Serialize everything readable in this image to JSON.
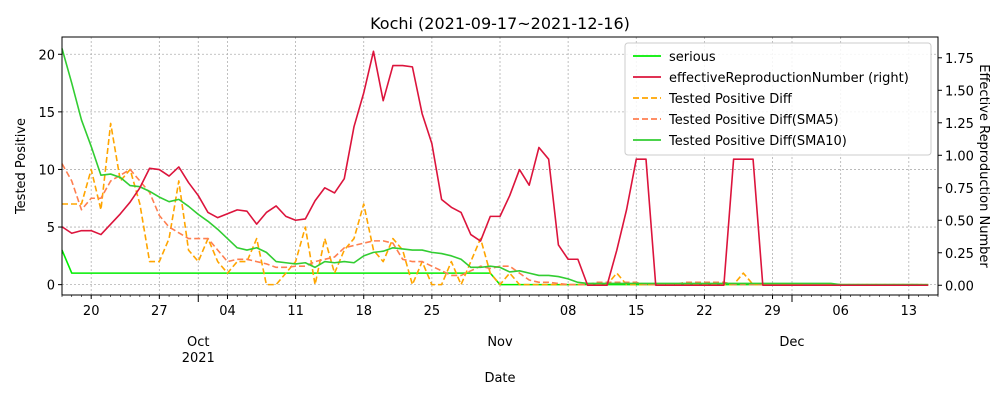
{
  "chart_data": {
    "type": "line",
    "title": "Kochi (2021-09-17~2021-12-16)",
    "xlabel": "Date",
    "ylabel": "Tested Positive",
    "ylabel_right": "Effective Reproduction Number",
    "x_start": "2021-09-17",
    "x_end": "2021-12-16",
    "ylim": [
      -0.9,
      21.5
    ],
    "ylim_right": [
      -0.075,
      1.91
    ],
    "grid": true,
    "legend_position": "top-right",
    "x_ticks": [
      {
        "date": "2021-09-20",
        "label": "20"
      },
      {
        "date": "2021-09-27",
        "label": "27"
      },
      {
        "date": "2021-10-01",
        "label": "Oct",
        "sublabel": "2021"
      },
      {
        "date": "2021-10-04",
        "label": "04"
      },
      {
        "date": "2021-10-11",
        "label": "11"
      },
      {
        "date": "2021-10-18",
        "label": "18"
      },
      {
        "date": "2021-10-25",
        "label": "25"
      },
      {
        "date": "2021-11-01",
        "label": "Nov"
      },
      {
        "date": "2021-11-08",
        "label": "08"
      },
      {
        "date": "2021-11-15",
        "label": "15"
      },
      {
        "date": "2021-11-22",
        "label": "22"
      },
      {
        "date": "2021-11-29",
        "label": "29"
      },
      {
        "date": "2021-12-01",
        "label": "Dec"
      },
      {
        "date": "2021-12-06",
        "label": "06"
      },
      {
        "date": "2021-12-13",
        "label": "13"
      }
    ],
    "y_ticks": [
      0,
      5,
      10,
      15,
      20
    ],
    "y_ticks_right": [
      {
        "value": 0,
        "label": "0.00"
      },
      {
        "value": 0.25,
        "label": "0.25"
      },
      {
        "value": 0.5,
        "label": "0.50"
      },
      {
        "value": 0.75,
        "label": "0.75"
      },
      {
        "value": 1.0,
        "label": "1.00"
      },
      {
        "value": 1.25,
        "label": "1.25"
      },
      {
        "value": 1.5,
        "label": "1.50"
      },
      {
        "value": 1.75,
        "label": "1.75"
      }
    ],
    "series": [
      {
        "name": "serious",
        "axis": "left",
        "color": "#00ee00",
        "dash": "solid",
        "values": [
          3,
          1,
          1,
          1,
          1,
          1,
          1,
          1,
          1,
          1,
          1,
          1,
          1,
          1,
          1,
          1,
          1,
          1,
          1,
          1,
          1,
          1,
          1,
          1,
          1,
          1,
          1,
          1,
          1,
          1,
          1,
          1,
          1,
          1,
          1,
          1,
          1,
          1,
          1,
          1,
          1,
          1,
          1,
          1,
          1,
          0,
          0,
          0,
          0,
          0,
          0,
          0,
          0,
          0,
          0,
          0,
          0,
          0,
          0,
          0,
          0,
          0,
          0,
          0,
          0,
          0,
          0,
          0,
          0,
          0,
          0,
          0,
          0,
          0,
          0,
          0,
          0,
          0,
          0,
          0,
          0,
          0,
          0,
          0,
          0,
          0,
          0,
          0,
          0
        ]
      },
      {
        "name": "effectiveReproductionNumber (right)",
        "axis": "right",
        "color": "#dc143c",
        "dash": "solid",
        "values": [
          0.45,
          0.4,
          0.42,
          0.42,
          0.39,
          0.47,
          0.55,
          0.64,
          0.75,
          0.9,
          0.89,
          0.84,
          0.91,
          0.79,
          0.69,
          0.56,
          0.52,
          0.55,
          0.58,
          0.57,
          0.47,
          0.56,
          0.61,
          0.53,
          0.5,
          0.51,
          0.65,
          0.75,
          0.71,
          0.82,
          1.22,
          1.48,
          1.8,
          1.42,
          1.69,
          1.69,
          1.68,
          1.32,
          1.09,
          0.66,
          0.6,
          0.56,
          0.39,
          0.34,
          0.53,
          0.53,
          0.69,
          0.89,
          0.77,
          1.06,
          0.97,
          0.31,
          0.2,
          0.2,
          0.0,
          0.0,
          0.0,
          0.27,
          0.58,
          0.97,
          0.97,
          0.0,
          0.0,
          0.0,
          0.0,
          0.0,
          0.0,
          0.0,
          0.0,
          0.97,
          0.97,
          0.97,
          0.0,
          0.0,
          0.0,
          0.0,
          0.0,
          0.0,
          0.0,
          0.0,
          0.0,
          0.0,
          0.0,
          0.0,
          0.0,
          0.0,
          0.0,
          0.0,
          0.0,
          0.0
        ]
      },
      {
        "name": "Tested Positive Diff",
        "axis": "left",
        "color": "#ffa500",
        "dash": "dashed",
        "values": [
          7,
          7,
          7,
          10,
          6.5,
          14,
          9,
          10,
          7,
          2,
          2,
          4,
          9,
          3,
          2,
          4,
          2,
          1,
          2,
          2,
          4,
          0,
          0,
          1,
          2,
          5,
          0,
          4,
          1,
          3,
          4,
          7,
          3,
          2,
          4,
          3,
          0,
          2,
          0,
          0,
          2,
          0,
          2,
          4,
          1,
          0,
          1,
          0,
          0,
          0,
          0,
          0,
          0,
          0,
          0,
          0,
          0,
          1,
          0,
          0,
          0,
          0,
          0,
          0,
          0,
          0,
          0,
          0,
          0,
          0,
          1,
          0,
          0,
          0,
          0,
          0,
          0,
          0,
          0,
          0,
          0,
          0,
          0,
          0,
          0,
          0,
          0,
          0,
          0,
          0
        ]
      },
      {
        "name": "Tested Positive Diff(SMA5)",
        "axis": "left",
        "color": "#ff7f50",
        "dash": "dashed",
        "values": [
          10.5,
          9,
          6.5,
          7.5,
          7.5,
          9,
          9.5,
          10,
          9,
          8,
          6,
          5,
          4.5,
          4,
          4,
          4,
          3,
          2,
          2.2,
          2.2,
          2,
          1.8,
          1.5,
          1.5,
          1.6,
          1.6,
          2,
          2.2,
          2.4,
          3.2,
          3.4,
          3.6,
          3.8,
          3.8,
          3.6,
          2.2,
          2,
          2,
          1.6,
          1.2,
          0.8,
          0.8,
          1.2,
          1.6,
          1.4,
          1.6,
          1.6,
          1,
          0.4,
          0.2,
          0.2,
          0.1,
          0,
          0,
          0,
          0.2,
          0.2,
          0.2,
          0.2,
          0.2,
          0,
          0,
          0,
          0,
          0.2,
          0.2,
          0.2,
          0.2,
          0.2,
          0,
          0,
          0,
          0,
          0,
          0,
          0,
          0,
          0,
          0,
          0,
          0,
          0,
          0,
          0,
          0,
          0,
          0,
          0,
          0,
          0
        ]
      },
      {
        "name": "Tested Positive Diff(SMA10)",
        "axis": "left",
        "color": "#32cd32",
        "dash": "solid",
        "values": [
          20.5,
          17.5,
          14.3,
          12,
          9.5,
          9.6,
          9.3,
          8.6,
          8.5,
          8.1,
          7.6,
          7.2,
          7.4,
          6.8,
          6.1,
          5.5,
          4.8,
          4,
          3.2,
          3,
          3.2,
          2.8,
          2,
          1.9,
          1.8,
          1.9,
          1.5,
          2,
          1.9,
          2,
          1.9,
          2.5,
          2.8,
          2.9,
          3.2,
          3.1,
          3,
          3,
          2.8,
          2.7,
          2.5,
          2.2,
          1.5,
          1.5,
          1.6,
          1.5,
          1.1,
          1.2,
          1,
          0.8,
          0.8,
          0.7,
          0.5,
          0.2,
          0.1,
          0.1,
          0.1,
          0.1,
          0.1,
          0.1,
          0.1,
          0.1,
          0.1,
          0.1,
          0.1,
          0.1,
          0.1,
          0.1,
          0.1,
          0.1,
          0.1,
          0.1,
          0.1,
          0.1,
          0.1,
          0.1,
          0.1,
          0.1,
          0.1,
          0.1,
          0,
          0,
          0,
          0,
          0,
          0,
          0,
          0,
          0,
          0
        ]
      }
    ]
  }
}
